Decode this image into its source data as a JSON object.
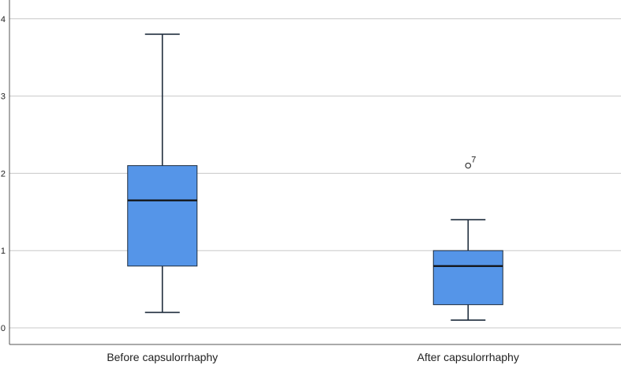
{
  "chart_data": {
    "type": "box",
    "title": "",
    "xlabel": "",
    "ylabel": "",
    "ylim": [
      -0.2,
      4.2
    ],
    "yticks": [
      0,
      1,
      2,
      3,
      4
    ],
    "ytick_labels": [
      "0",
      "1",
      "2",
      "3",
      "4"
    ],
    "grid": "horizontal",
    "categories": [
      "Before capsulorrhaphy",
      "After capsulorrhaphy"
    ],
    "boxes": [
      {
        "category": "Before capsulorrhaphy",
        "min": 0.2,
        "q1": 0.8,
        "median": 1.65,
        "q3": 2.1,
        "max": 3.8,
        "outliers": []
      },
      {
        "category": "After capsulorrhaphy",
        "min": 0.1,
        "q1": 0.3,
        "median": 0.8,
        "q3": 1.0,
        "max": 1.4,
        "outliers": [
          {
            "value": 2.1,
            "label": "7"
          }
        ]
      }
    ],
    "colors": {
      "box_fill": "#5595e8",
      "box_stroke": "#1f2d3d",
      "grid": "#c8c8c8",
      "axis": "#555555"
    }
  }
}
